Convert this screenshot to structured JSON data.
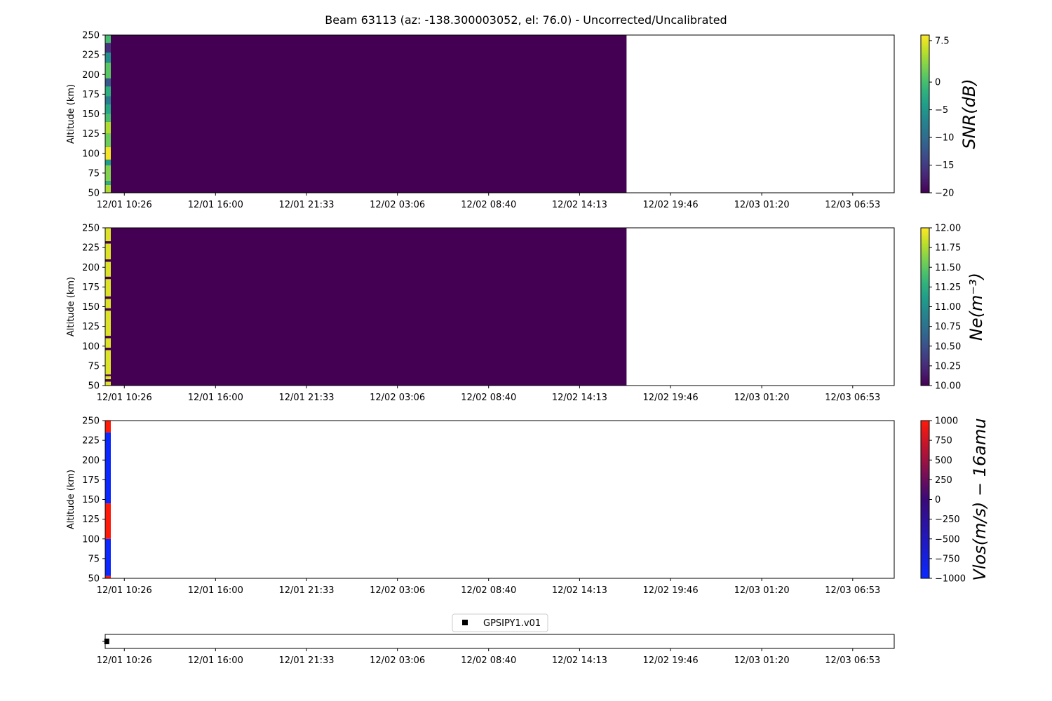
{
  "title": "Beam 63113 (az: -138.300003052, el: 76.0) - Uncorrected/Uncalibrated",
  "time_ticks": [
    "12/01 10:26",
    "12/01 16:00",
    "12/01 21:33",
    "12/02 03:06",
    "12/02 08:40",
    "12/02 14:13",
    "12/02 19:46",
    "12/03 01:20",
    "12/03 06:53"
  ],
  "colors": {
    "viridis_low": "#440154",
    "viridis_high": "#fde725",
    "vlos_red": "#ff1a0a",
    "vlos_blue": "#0a28ff",
    "vlos_mid": "#3a0a78"
  },
  "chart_data": [
    {
      "type": "heatmap",
      "panel": "snr",
      "ylabel": "Altitude (km)",
      "ylim": [
        50,
        250
      ],
      "yticks": [
        50,
        75,
        100,
        125,
        150,
        175,
        200,
        225,
        250
      ],
      "x_axis": "time",
      "x_range": [
        "12/01 09:16",
        "12/03 09:25"
      ],
      "data_end": "12/02 17:05",
      "colorbar": {
        "label": "SNR(dB)",
        "range": [
          -20,
          8.5
        ],
        "ticks": [
          "7.5",
          "0",
          "−5",
          "−10",
          "−15",
          "−20"
        ],
        "tick_values": [
          7.5,
          0,
          -5,
          -10,
          -15,
          -20
        ],
        "colormap": "viridis"
      },
      "background_value": -20,
      "first_column_segments": [
        {
          "from": 50,
          "to": 60,
          "value": 5
        },
        {
          "from": 60,
          "to": 65,
          "value": -2
        },
        {
          "from": 65,
          "to": 85,
          "value": 3
        },
        {
          "from": 85,
          "to": 92,
          "value": -4
        },
        {
          "from": 92,
          "to": 108,
          "value": 8
        },
        {
          "from": 108,
          "to": 125,
          "value": 2
        },
        {
          "from": 125,
          "to": 140,
          "value": 5
        },
        {
          "from": 140,
          "to": 150,
          "value": 0
        },
        {
          "from": 150,
          "to": 162,
          "value": -3
        },
        {
          "from": 162,
          "to": 172,
          "value": -8
        },
        {
          "from": 172,
          "to": 185,
          "value": -2
        },
        {
          "from": 185,
          "to": 195,
          "value": -12
        },
        {
          "from": 195,
          "to": 215,
          "value": 1
        },
        {
          "from": 215,
          "to": 228,
          "value": -6
        },
        {
          "from": 228,
          "to": 240,
          "value": -16
        },
        {
          "from": 240,
          "to": 250,
          "value": 0
        }
      ]
    },
    {
      "type": "heatmap",
      "panel": "ne",
      "ylabel": "Altitude (km)",
      "ylim": [
        50,
        250
      ],
      "yticks": [
        50,
        75,
        100,
        125,
        150,
        175,
        200,
        225,
        250
      ],
      "x_axis": "time",
      "x_range": [
        "12/01 09:16",
        "12/03 09:25"
      ],
      "data_end": "12/02 17:05",
      "colorbar": {
        "label": "Ne(m⁻³)",
        "range": [
          10,
          12
        ],
        "ticks": [
          "12.00",
          "11.75",
          "11.50",
          "11.25",
          "11.00",
          "10.75",
          "10.50",
          "10.25",
          "10.00"
        ],
        "tick_values": [
          12,
          11.75,
          11.5,
          11.25,
          11,
          10.75,
          10.5,
          10.25,
          10
        ],
        "colormap": "viridis"
      },
      "background_value": 10,
      "first_column_segments": [
        {
          "from": 50,
          "to": 55,
          "value": 11.9
        },
        {
          "from": 55,
          "to": 58,
          "value": 10
        },
        {
          "from": 58,
          "to": 62,
          "value": 11.9
        },
        {
          "from": 62,
          "to": 64,
          "value": 10
        },
        {
          "from": 64,
          "to": 95,
          "value": 11.9
        },
        {
          "from": 95,
          "to": 98,
          "value": 10
        },
        {
          "from": 98,
          "to": 110,
          "value": 11.9
        },
        {
          "from": 110,
          "to": 113,
          "value": 10
        },
        {
          "from": 113,
          "to": 145,
          "value": 11.9
        },
        {
          "from": 145,
          "to": 148,
          "value": 10
        },
        {
          "from": 148,
          "to": 160,
          "value": 11.9
        },
        {
          "from": 160,
          "to": 163,
          "value": 10
        },
        {
          "from": 163,
          "to": 185,
          "value": 11.9
        },
        {
          "from": 185,
          "to": 188,
          "value": 10
        },
        {
          "from": 188,
          "to": 207,
          "value": 11.9
        },
        {
          "from": 207,
          "to": 210,
          "value": 10
        },
        {
          "from": 210,
          "to": 230,
          "value": 11.9
        },
        {
          "from": 230,
          "to": 233,
          "value": 10
        },
        {
          "from": 233,
          "to": 250,
          "value": 11.9
        }
      ]
    },
    {
      "type": "heatmap",
      "panel": "vlos",
      "ylabel": "Altitude (km)",
      "ylim": [
        50,
        250
      ],
      "yticks": [
        50,
        75,
        100,
        125,
        150,
        175,
        200,
        225,
        250
      ],
      "x_axis": "time",
      "x_range": [
        "12/01 09:16",
        "12/03 09:25"
      ],
      "colorbar": {
        "label": "Vlos(m/s) − 16amu",
        "range": [
          -1000,
          1000
        ],
        "ticks": [
          "1000",
          "750",
          "500",
          "250",
          "0",
          "−250",
          "−500",
          "−750",
          "−1000"
        ],
        "tick_values": [
          1000,
          750,
          500,
          250,
          0,
          -250,
          -500,
          -750,
          -1000
        ],
        "colormap": "bwr-dark"
      },
      "first_column_segments": [
        {
          "from": 50,
          "to": 53,
          "value": 1000
        },
        {
          "from": 53,
          "to": 100,
          "value": -1000
        },
        {
          "from": 100,
          "to": 145,
          "value": 1000
        },
        {
          "from": 145,
          "to": 235,
          "value": -1000
        },
        {
          "from": 235,
          "to": 250,
          "value": 1000
        }
      ]
    },
    {
      "type": "scatter",
      "panel": "timeline",
      "x_axis": "time",
      "x_range": [
        "12/01 09:16",
        "12/03 09:25"
      ],
      "legend": {
        "label": "GPSIPY1.v01",
        "placement": "above"
      },
      "points": [
        {
          "x": "12/01 09:18"
        }
      ]
    }
  ]
}
